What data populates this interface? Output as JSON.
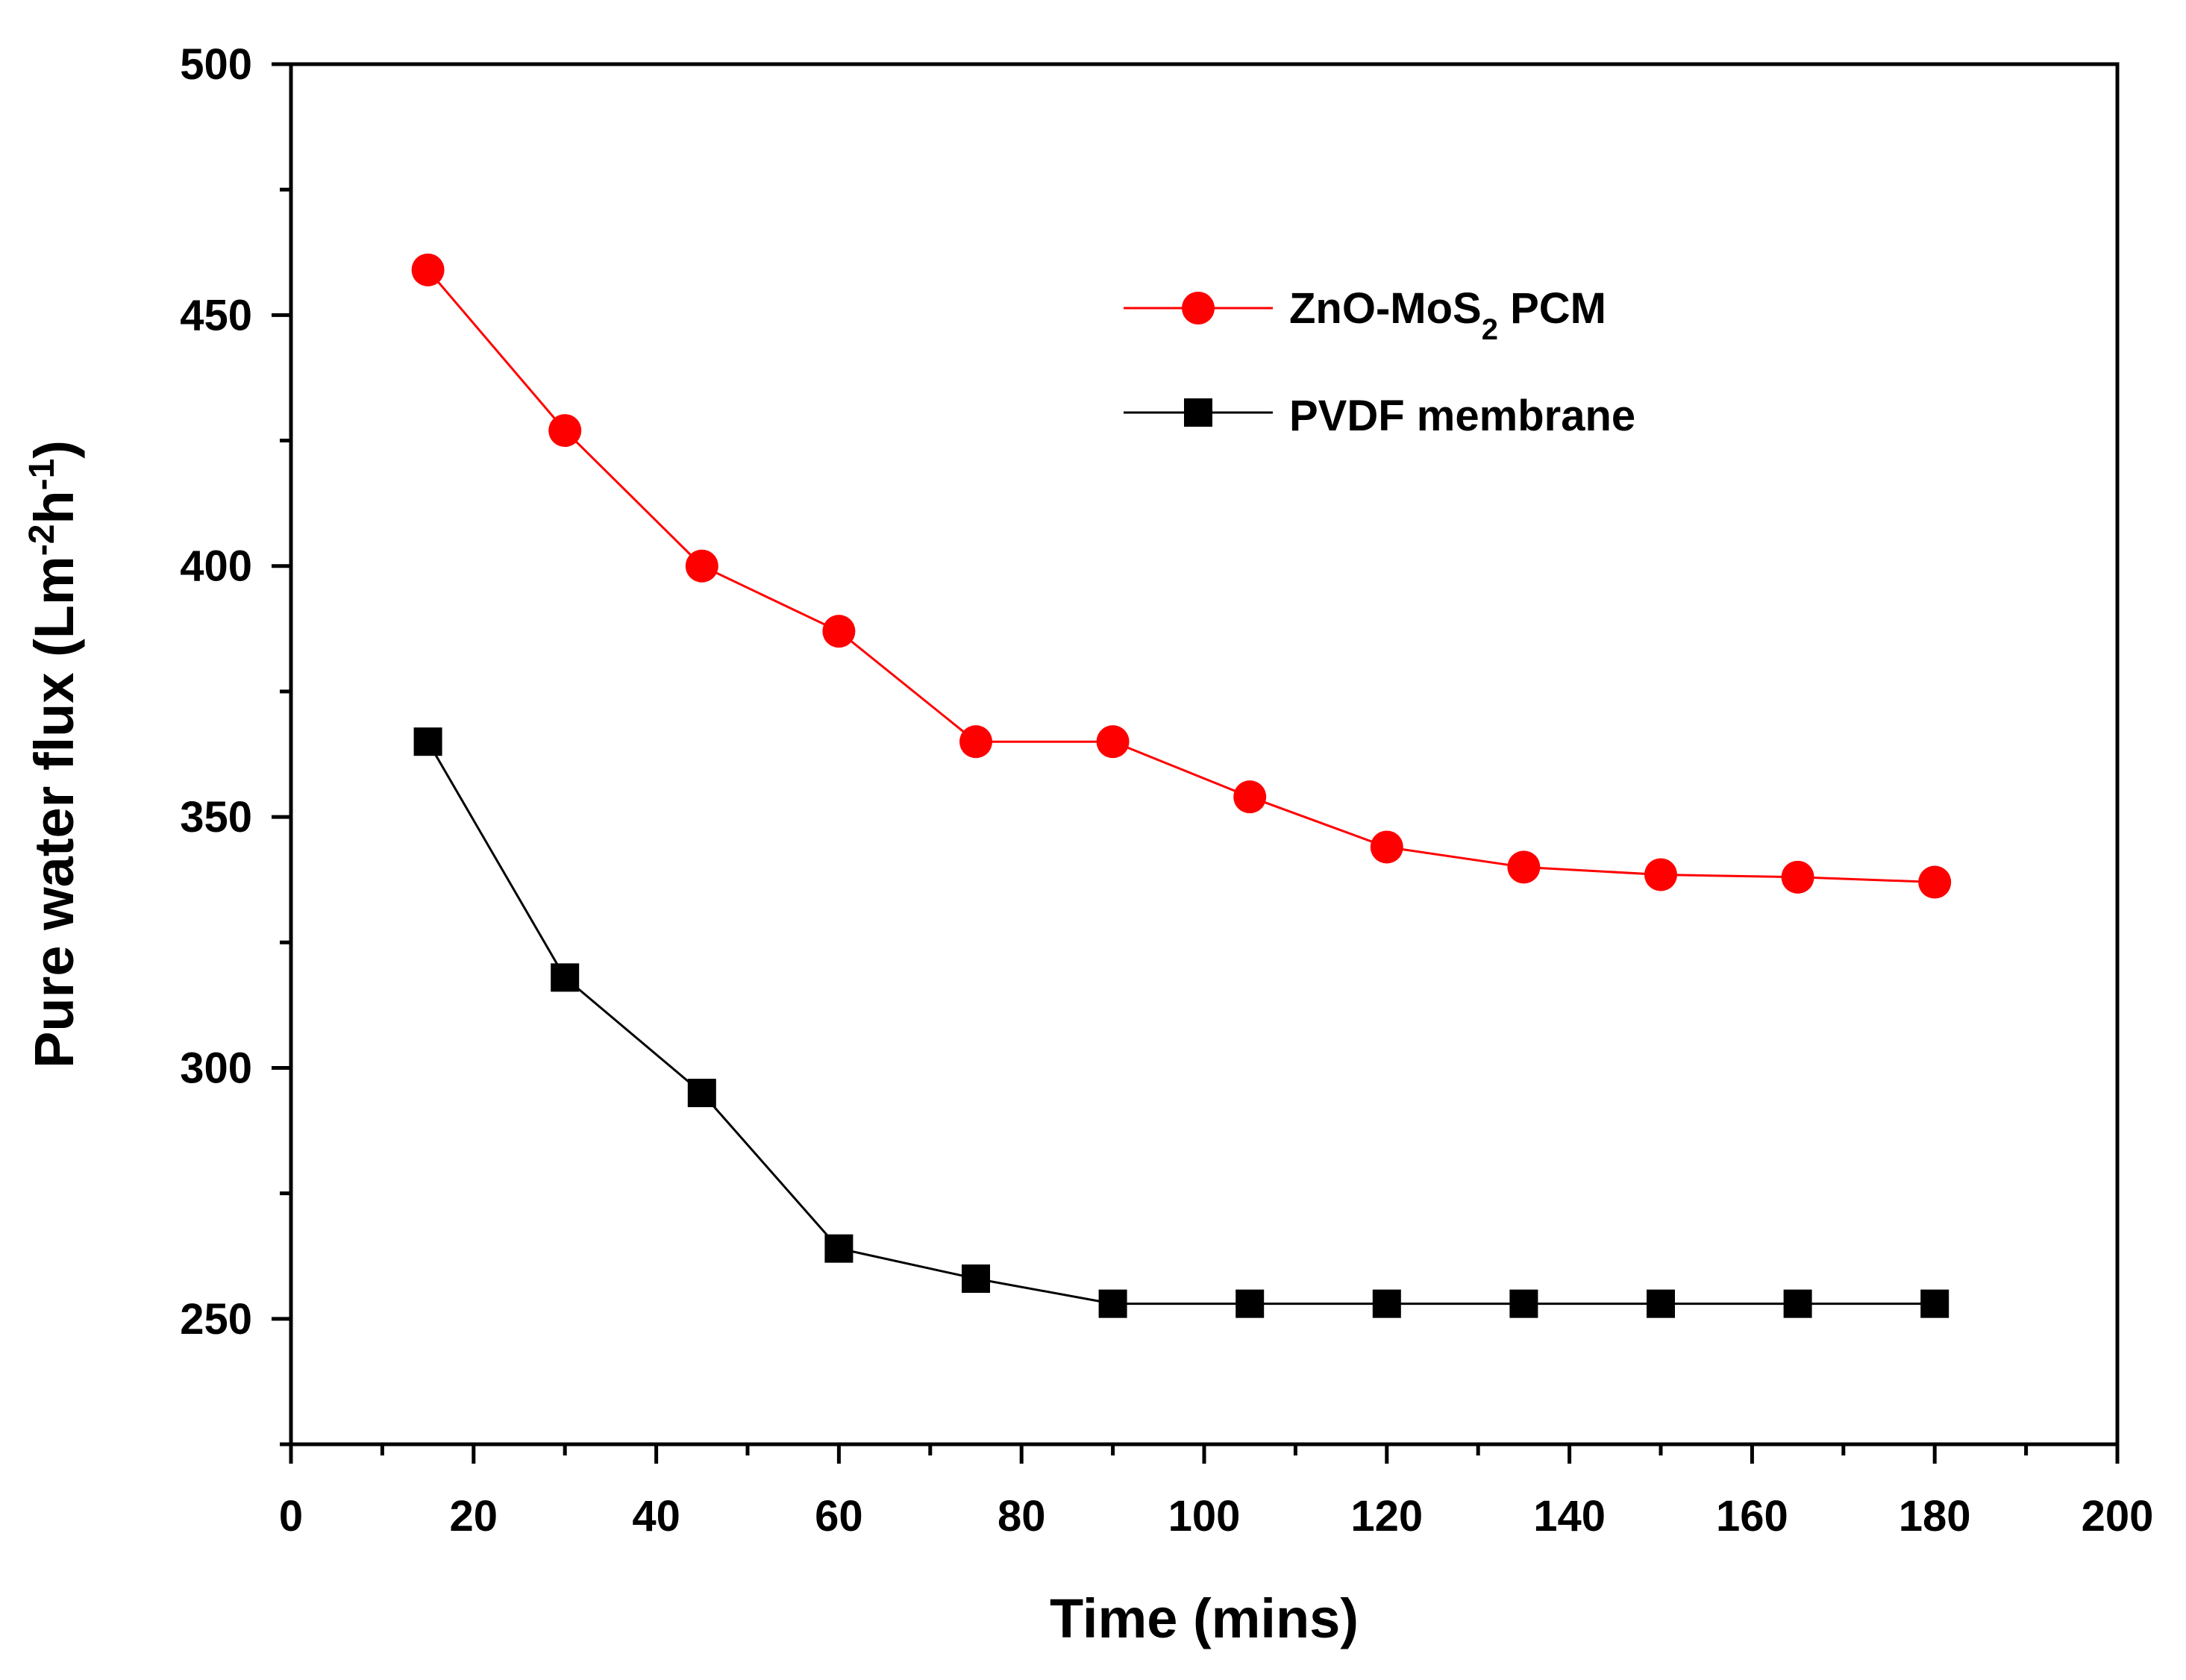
{
  "chart_data": {
    "type": "line",
    "xlabel": "Time (mins)",
    "ylabel": {
      "base": "Pure water flux (Lm",
      "sup1": "-2",
      "mid": "h",
      "sup2": "-1",
      "end": ")"
    },
    "xlim": [
      0,
      200
    ],
    "ylim": [
      225,
      500
    ],
    "xticks": [
      0,
      20,
      40,
      60,
      80,
      100,
      120,
      140,
      160,
      180,
      200
    ],
    "yticks": [
      250,
      300,
      350,
      400,
      450,
      500
    ],
    "xtick_labels": [
      "0",
      "20",
      "40",
      "60",
      "80",
      "100",
      "120",
      "140",
      "160",
      "180",
      "200"
    ],
    "ytick_labels": [
      "250",
      "300",
      "350",
      "400",
      "450",
      "500"
    ],
    "grid": false,
    "legend_position": "top-right",
    "series": [
      {
        "name": "ZnO-MoS2 PCM",
        "label_parts": {
          "main": "ZnO-MoS",
          "sub": "2",
          "rest": " PCM"
        },
        "color": "#ff0000",
        "marker": "circle",
        "x": [
          15,
          30,
          45,
          60,
          75,
          90,
          105,
          120,
          135,
          150,
          165,
          180
        ],
        "values": [
          459,
          427,
          400,
          387,
          365,
          365,
          354,
          344,
          340,
          338.5,
          338,
          337
        ]
      },
      {
        "name": "PVDF membrane",
        "label_parts": {
          "main": "PVDF membrane",
          "sub": "",
          "rest": ""
        },
        "color": "#000000",
        "marker": "square",
        "x": [
          15,
          30,
          45,
          60,
          75,
          90,
          105,
          120,
          135,
          150,
          165,
          180
        ],
        "values": [
          365,
          318,
          295,
          264,
          258,
          253,
          253,
          253,
          253,
          253,
          253,
          253
        ]
      }
    ]
  }
}
